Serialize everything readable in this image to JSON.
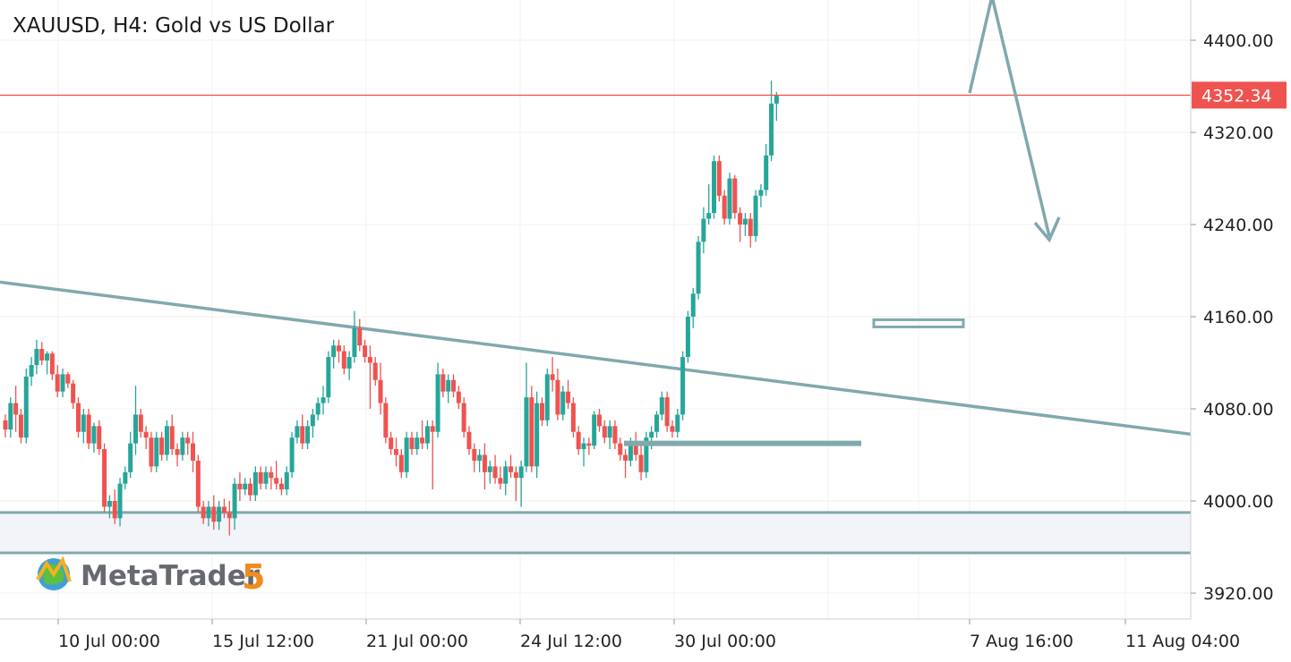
{
  "chart_data": {
    "type": "candlestick",
    "title": "XAUUSD, H4: Gold vs US Dollar",
    "ylim": [
      3900,
      4440
    ],
    "y_ticks": [
      3920,
      4000,
      4080,
      4160,
      4240,
      4320,
      4400
    ],
    "y_tick_labels": [
      "3920.00",
      "4000.00",
      "4080.00",
      "4160.00",
      "4240.00",
      "4320.00",
      "4400.00"
    ],
    "x_tick_labels": [
      "10 Jul 00:00",
      "15 Jul 12:00",
      "21 Jul 00:00",
      "24 Jul 12:00",
      "30 Jul 00:00",
      "7 Aug 16:00",
      "11 Aug 04:00"
    ],
    "current_price": 4352.34,
    "current_price_label": "4352.34",
    "grid": true,
    "colors": {
      "up": "#26a69a",
      "down": "#ef5350",
      "price_line": "#ef5350",
      "drawing": "#80a9ad",
      "zone": "#f3f4fa"
    },
    "candles": [
      [
        4070,
        4075,
        4055,
        4062
      ],
      [
        4062,
        4090,
        4055,
        4085
      ],
      [
        4085,
        4100,
        4060,
        4075
      ],
      [
        4075,
        4080,
        4050,
        4055
      ],
      [
        4055,
        4115,
        4050,
        4108
      ],
      [
        4108,
        4125,
        4100,
        4118
      ],
      [
        4118,
        4140,
        4110,
        4132
      ],
      [
        4132,
        4138,
        4118,
        4122
      ],
      [
        4122,
        4130,
        4110,
        4128
      ],
      [
        4128,
        4130,
        4105,
        4110
      ],
      [
        4110,
        4118,
        4090,
        4095
      ],
      [
        4095,
        4115,
        4090,
        4110
      ],
      [
        4110,
        4112,
        4098,
        4102
      ],
      [
        4102,
        4105,
        4080,
        4085
      ],
      [
        4085,
        4090,
        4055,
        4060
      ],
      [
        4060,
        4080,
        4050,
        4075
      ],
      [
        4075,
        4080,
        4045,
        4050
      ],
      [
        4050,
        4068,
        4042,
        4065
      ],
      [
        4065,
        4070,
        4040,
        4045
      ],
      [
        4045,
        4050,
        3990,
        3995
      ],
      [
        3995,
        4005,
        3985,
        4000
      ],
      [
        4000,
        4010,
        3980,
        3985
      ],
      [
        3985,
        4020,
        3978,
        4015
      ],
      [
        4015,
        4030,
        4010,
        4025
      ],
      [
        4025,
        4060,
        4020,
        4050
      ],
      [
        4050,
        4100,
        4040,
        4075
      ],
      [
        4075,
        4080,
        4055,
        4060
      ],
      [
        4060,
        4065,
        4045,
        4055
      ],
      [
        4055,
        4060,
        4025,
        4030
      ],
      [
        4030,
        4060,
        4025,
        4055
      ],
      [
        4055,
        4060,
        4035,
        4040
      ],
      [
        4040,
        4070,
        4035,
        4065
      ],
      [
        4065,
        4075,
        4040,
        4045
      ],
      [
        4045,
        4050,
        4030,
        4040
      ],
      [
        4040,
        4060,
        4035,
        4055
      ],
      [
        4055,
        4060,
        4040,
        4050
      ],
      [
        4050,
        4060,
        4025,
        4035
      ],
      [
        4035,
        4040,
        3990,
        3995
      ],
      [
        3995,
        4000,
        3980,
        3985
      ],
      [
        3985,
        4000,
        3978,
        3995
      ],
      [
        3995,
        4005,
        3975,
        3982
      ],
      [
        3982,
        4000,
        3975,
        3995
      ],
      [
        3995,
        4002,
        3985,
        3990
      ],
      [
        3990,
        4000,
        3970,
        3985
      ],
      [
        3985,
        4020,
        3975,
        4015
      ],
      [
        4015,
        4025,
        4000,
        4010
      ],
      [
        4010,
        4020,
        4005,
        4015
      ],
      [
        4015,
        4020,
        4000,
        4005
      ],
      [
        4005,
        4030,
        4000,
        4025
      ],
      [
        4025,
        4030,
        4010,
        4015
      ],
      [
        4015,
        4030,
        4010,
        4025
      ],
      [
        4025,
        4030,
        4010,
        4020
      ],
      [
        4020,
        4035,
        4010,
        4015
      ],
      [
        4015,
        4020,
        4005,
        4010
      ],
      [
        4010,
        4030,
        4005,
        4025
      ],
      [
        4025,
        4060,
        4020,
        4055
      ],
      [
        4055,
        4070,
        4050,
        4065
      ],
      [
        4065,
        4075,
        4045,
        4050
      ],
      [
        4050,
        4070,
        4045,
        4065
      ],
      [
        4065,
        4080,
        4055,
        4075
      ],
      [
        4075,
        4090,
        4070,
        4085
      ],
      [
        4085,
        4100,
        4075,
        4090
      ],
      [
        4090,
        4130,
        4085,
        4125
      ],
      [
        4125,
        4140,
        4115,
        4135
      ],
      [
        4135,
        4140,
        4120,
        4130
      ],
      [
        4130,
        4135,
        4110,
        4115
      ],
      [
        4115,
        4130,
        4105,
        4125
      ],
      [
        4125,
        4165,
        4120,
        4150
      ],
      [
        4150,
        4158,
        4130,
        4135
      ],
      [
        4135,
        4140,
        4120,
        4125
      ],
      [
        4125,
        4135,
        4080,
        4120
      ],
      [
        4120,
        4125,
        4100,
        4105
      ],
      [
        4105,
        4120,
        4075,
        4085
      ],
      [
        4085,
        4090,
        4050,
        4055
      ],
      [
        4055,
        4060,
        4040,
        4045
      ],
      [
        4045,
        4055,
        4030,
        4040
      ],
      [
        4040,
        4045,
        4020,
        4025
      ],
      [
        4025,
        4060,
        4020,
        4055
      ],
      [
        4055,
        4060,
        4040,
        4045
      ],
      [
        4045,
        4060,
        4040,
        4055
      ],
      [
        4055,
        4070,
        4045,
        4050
      ],
      [
        4050,
        4070,
        4045,
        4065
      ],
      [
        4065,
        4070,
        4010,
        4060
      ],
      [
        4060,
        4120,
        4055,
        4110
      ],
      [
        4110,
        4115,
        4090,
        4095
      ],
      [
        4095,
        4110,
        4085,
        4105
      ],
      [
        4105,
        4110,
        4090,
        4095
      ],
      [
        4095,
        4100,
        4080,
        4085
      ],
      [
        4085,
        4090,
        4055,
        4060
      ],
      [
        4060,
        4065,
        4040,
        4045
      ],
      [
        4045,
        4050,
        4025,
        4035
      ],
      [
        4035,
        4045,
        4025,
        4040
      ],
      [
        4040,
        4050,
        4010,
        4025
      ],
      [
        4025,
        4035,
        4015,
        4030
      ],
      [
        4030,
        4040,
        4015,
        4020
      ],
      [
        4020,
        4030,
        4010,
        4015
      ],
      [
        4015,
        4035,
        4005,
        4030
      ],
      [
        4030,
        4040,
        4020,
        4025
      ],
      [
        4025,
        4030,
        4000,
        4020
      ],
      [
        4020,
        4035,
        3995,
        4030
      ],
      [
        4030,
        4120,
        4025,
        4090
      ],
      [
        4090,
        4100,
        4025,
        4030
      ],
      [
        4030,
        4095,
        4020,
        4085
      ],
      [
        4085,
        4090,
        4065,
        4070
      ],
      [
        4070,
        4115,
        4065,
        4110
      ],
      [
        4110,
        4125,
        4095,
        4105
      ],
      [
        4105,
        4115,
        4070,
        4075
      ],
      [
        4075,
        4100,
        4070,
        4095
      ],
      [
        4095,
        4105,
        4080,
        4085
      ],
      [
        4085,
        4090,
        4055,
        4060
      ],
      [
        4060,
        4065,
        4040,
        4045
      ],
      [
        4045,
        4055,
        4030,
        4050
      ],
      [
        4050,
        4055,
        4040,
        4048
      ],
      [
        4048,
        4078,
        4045,
        4075
      ],
      [
        4075,
        4080,
        4060,
        4065
      ],
      [
        4065,
        4070,
        4050,
        4055
      ],
      [
        4055,
        4070,
        4045,
        4065
      ],
      [
        4065,
        4070,
        4045,
        4050
      ],
      [
        4050,
        4055,
        4035,
        4040
      ],
      [
        4040,
        4045,
        4020,
        4035
      ],
      [
        4035,
        4055,
        4030,
        4050
      ],
      [
        4050,
        4060,
        4035,
        4040
      ],
      [
        4040,
        4050,
        4018,
        4025
      ],
      [
        4025,
        4060,
        4020,
        4055
      ],
      [
        4055,
        4065,
        4045,
        4060
      ],
      [
        4060,
        4078,
        4055,
        4075
      ],
      [
        4075,
        4095,
        4070,
        4090
      ],
      [
        4090,
        4095,
        4060,
        4065
      ],
      [
        4065,
        4070,
        4055,
        4060
      ],
      [
        4060,
        4080,
        4055,
        4075
      ],
      [
        4075,
        4130,
        4070,
        4125
      ],
      [
        4125,
        4165,
        4120,
        4160
      ],
      [
        4160,
        4185,
        4150,
        4180
      ],
      [
        4180,
        4230,
        4175,
        4225
      ],
      [
        4225,
        4255,
        4215,
        4245
      ],
      [
        4245,
        4275,
        4240,
        4250
      ],
      [
        4250,
        4300,
        4245,
        4295
      ],
      [
        4295,
        4300,
        4260,
        4265
      ],
      [
        4265,
        4270,
        4240,
        4245
      ],
      [
        4245,
        4285,
        4240,
        4280
      ],
      [
        4280,
        4283,
        4245,
        4250
      ],
      [
        4250,
        4255,
        4225,
        4240
      ],
      [
        4240,
        4250,
        4230,
        4245
      ],
      [
        4245,
        4250,
        4220,
        4230
      ],
      [
        4230,
        4270,
        4225,
        4265
      ],
      [
        4265,
        4275,
        4255,
        4270
      ],
      [
        4270,
        4310,
        4265,
        4300
      ],
      [
        4300,
        4365,
        4295,
        4345
      ],
      [
        4345,
        4355,
        4330,
        4352
      ]
    ]
  }
}
